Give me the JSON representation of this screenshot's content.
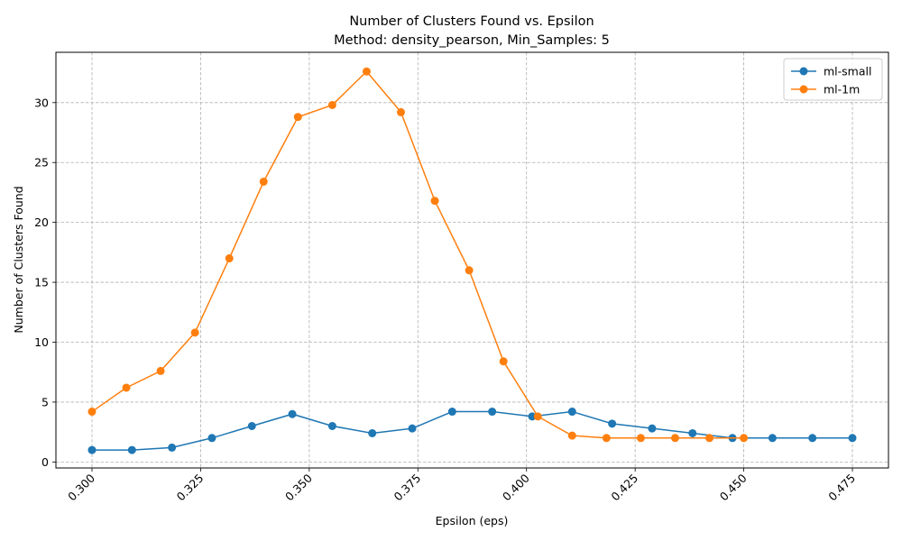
{
  "chart_data": {
    "type": "line",
    "title": "Number of Clusters Found vs. Epsilon",
    "subtitle": "Method: density_pearson, Min_Samples: 5",
    "xlabel": "Epsilon (eps)",
    "ylabel": "Number of Clusters Found",
    "xlim": [
      0.2917,
      0.4833
    ],
    "ylim": [
      -0.5,
      34.2
    ],
    "xticks": [
      0.3,
      0.325,
      0.35,
      0.375,
      0.4,
      0.425,
      0.45,
      0.475
    ],
    "xtick_labels": [
      "0.300",
      "0.325",
      "0.350",
      "0.375",
      "0.400",
      "0.425",
      "0.450",
      "0.475"
    ],
    "yticks": [
      0,
      5,
      10,
      15,
      20,
      25,
      30
    ],
    "ytick_labels": [
      "0",
      "5",
      "10",
      "15",
      "20",
      "25",
      "30"
    ],
    "grid": true,
    "legend_position": "top-right",
    "series": [
      {
        "name": "ml-small",
        "color": "#1f77b4",
        "x": [
          0.3,
          0.3092,
          0.3184,
          0.3276,
          0.3368,
          0.3461,
          0.3553,
          0.3645,
          0.3737,
          0.3829,
          0.3921,
          0.4013,
          0.4105,
          0.4197,
          0.4289,
          0.4382,
          0.4474,
          0.4566,
          0.4658,
          0.475
        ],
        "y": [
          1.0,
          1.0,
          1.2,
          2.0,
          3.0,
          4.0,
          3.0,
          2.4,
          2.8,
          4.2,
          4.2,
          3.8,
          4.2,
          3.2,
          2.8,
          2.4,
          2.0,
          2.0,
          2.0,
          2.0
        ]
      },
      {
        "name": "ml-1m",
        "color": "#ff7f0e",
        "x": [
          0.3,
          0.3079,
          0.3158,
          0.3237,
          0.3316,
          0.3395,
          0.3474,
          0.3553,
          0.3632,
          0.3711,
          0.3789,
          0.3868,
          0.3947,
          0.4026,
          0.4105,
          0.4184,
          0.4263,
          0.4342,
          0.4421,
          0.45
        ],
        "y": [
          4.2,
          6.2,
          7.6,
          10.8,
          17.0,
          23.4,
          28.8,
          29.8,
          32.6,
          29.2,
          21.8,
          16.0,
          8.4,
          3.8,
          2.2,
          2.0,
          2.0,
          2.0,
          2.0,
          2.0
        ]
      }
    ]
  }
}
